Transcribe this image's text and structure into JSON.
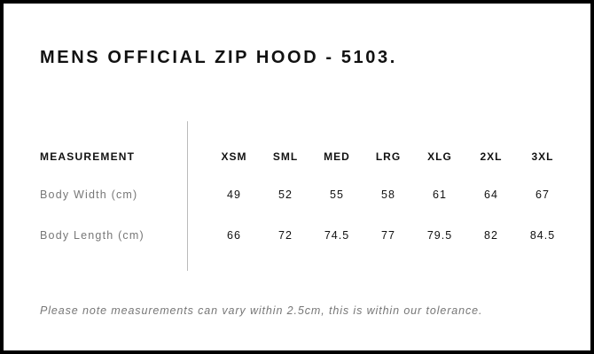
{
  "title": "MENS OFFICIAL ZIP HOOD - 5103.",
  "table": {
    "header_label": "MEASUREMENT",
    "sizes": [
      "XSM",
      "SML",
      "MED",
      "LRG",
      "XLG",
      "2XL",
      "3XL"
    ],
    "rows": [
      {
        "label": "Body Width (cm)",
        "values": [
          "49",
          "52",
          "55",
          "58",
          "61",
          "64",
          "67"
        ]
      },
      {
        "label": "Body Length (cm)",
        "values": [
          "66",
          "72",
          "74.5",
          "77",
          "79.5",
          "82",
          "84.5"
        ]
      }
    ]
  },
  "note": "Please note measurements can vary within 2.5cm, this is within our tolerance."
}
